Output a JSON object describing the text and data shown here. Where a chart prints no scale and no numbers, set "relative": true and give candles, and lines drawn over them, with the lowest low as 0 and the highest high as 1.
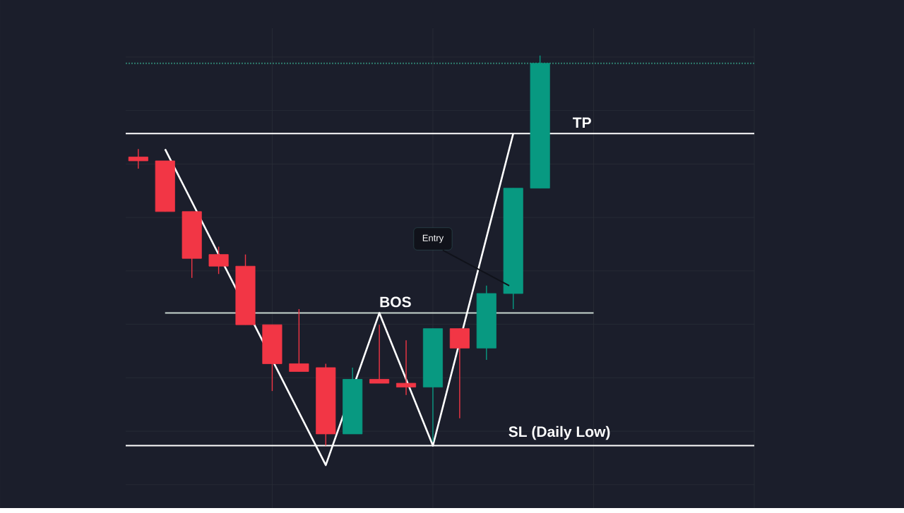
{
  "chart_data": {
    "type": "candlestick",
    "relative": true,
    "grid": true,
    "categories": [
      null,
      null,
      null,
      null,
      null,
      null,
      null,
      null,
      null,
      null,
      null,
      null,
      null,
      null,
      null,
      null
    ],
    "ohlc": [
      [
        0.74,
        0.76,
        0.71,
        0.73
      ],
      [
        0.73,
        0.73,
        0.6,
        0.6
      ],
      [
        0.6,
        0.6,
        0.43,
        0.48
      ],
      [
        0.49,
        0.51,
        0.44,
        0.46
      ],
      [
        0.46,
        0.49,
        0.31,
        0.31
      ],
      [
        0.31,
        0.31,
        0.14,
        0.21
      ],
      [
        0.21,
        0.35,
        0.19,
        0.19
      ],
      [
        0.2,
        0.21,
        0.0,
        0.03
      ],
      [
        0.03,
        0.2,
        0.03,
        0.17
      ],
      [
        0.17,
        0.31,
        0.16,
        0.16
      ],
      [
        0.16,
        0.27,
        0.13,
        0.15
      ],
      [
        0.15,
        0.3,
        0.01,
        0.3
      ],
      [
        0.3,
        0.3,
        0.07,
        0.25
      ],
      [
        0.25,
        0.41,
        0.22,
        0.39
      ],
      [
        0.39,
        0.66,
        0.35,
        0.66
      ],
      [
        0.66,
        1.0,
        0.66,
        0.98
      ]
    ],
    "colors": [
      "#f23645",
      "#f23645",
      "#f23645",
      "#f23645",
      "#f23645",
      "#f23645",
      "#f23645",
      "#f23645",
      "#089981",
      "#f23645",
      "#f23645",
      "#089981",
      "#f23645",
      "#089981",
      "#089981",
      "#089981"
    ],
    "series": [
      {
        "type": "line",
        "color": "#ffffff",
        "values": [
          null,
          0.76,
          null,
          null,
          null,
          null,
          null,
          -0.05,
          null,
          0.34,
          null,
          0.0,
          null,
          null,
          0.8,
          null
        ]
      }
    ],
    "ref_lines": [
      {
        "axis": "y",
        "value": 0.8,
        "label": "TP",
        "color": "#ffffff"
      },
      {
        "axis": "y",
        "value": 0.34,
        "label": "BOS",
        "color": "#c8d6cf"
      },
      {
        "axis": "y",
        "value": 0.0,
        "label": "SL (Daily Low)",
        "color": "#ffffff"
      },
      {
        "axis": "y",
        "value": 0.98,
        "color": "#2f7d6e",
        "line_style": "dotted"
      }
    ],
    "annotations": [
      "Entry"
    ]
  }
}
